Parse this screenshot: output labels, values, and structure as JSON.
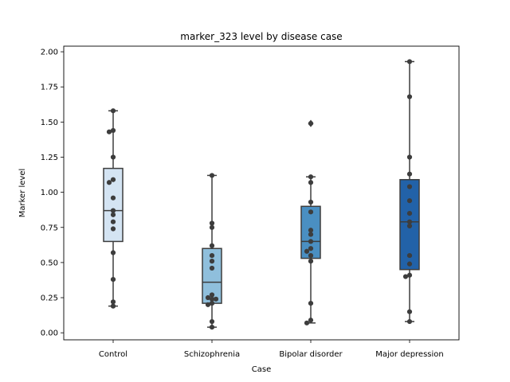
{
  "chart_data": {
    "type": "box",
    "title": "marker_323 level by disease case",
    "xlabel": "Case",
    "ylabel": "Marker level",
    "ylim": [
      -0.05,
      2.04
    ],
    "yticks": [
      "0.00",
      "0.25",
      "0.50",
      "0.75",
      "1.00",
      "1.25",
      "1.50",
      "1.75",
      "2.00"
    ],
    "grid": false,
    "categories": [
      "Control",
      "Schizophrenia",
      "Bipolar disorder",
      "Major depression"
    ],
    "colors": [
      "#d4e4f3",
      "#8fbfdc",
      "#4a8fc2",
      "#2262a8"
    ],
    "boxes": [
      {
        "category": "Control",
        "whisker_low": 0.19,
        "q1": 0.65,
        "median": 0.87,
        "q3": 1.17,
        "whisker_high": 1.58,
        "outliers": []
      },
      {
        "category": "Schizophrenia",
        "whisker_low": 0.04,
        "q1": 0.21,
        "median": 0.36,
        "q3": 0.6,
        "whisker_high": 1.12,
        "outliers": []
      },
      {
        "category": "Bipolar disorder",
        "whisker_low": 0.07,
        "q1": 0.53,
        "median": 0.65,
        "q3": 0.9,
        "whisker_high": 1.11,
        "outliers": [
          1.49
        ]
      },
      {
        "category": "Major depression",
        "whisker_low": 0.08,
        "q1": 0.45,
        "median": 0.79,
        "q3": 1.09,
        "whisker_high": 1.93,
        "outliers": []
      }
    ],
    "points": [
      {
        "category": "Control",
        "values": [
          1.58,
          1.44,
          1.43,
          1.25,
          1.09,
          1.07,
          0.96,
          0.87,
          0.84,
          0.79,
          0.74,
          0.57,
          0.38,
          0.22,
          0.19
        ]
      },
      {
        "category": "Schizophrenia",
        "values": [
          1.12,
          0.78,
          0.75,
          0.62,
          0.55,
          0.51,
          0.46,
          0.27,
          0.25,
          0.24,
          0.24,
          0.21,
          0.2,
          0.08,
          0.04
        ]
      },
      {
        "category": "Bipolar disorder",
        "values": [
          1.49,
          1.11,
          1.07,
          0.93,
          0.86,
          0.73,
          0.7,
          0.65,
          0.6,
          0.58,
          0.55,
          0.51,
          0.21,
          0.09,
          0.07
        ]
      },
      {
        "category": "Major depression",
        "values": [
          1.93,
          1.68,
          1.25,
          1.13,
          1.04,
          0.94,
          0.85,
          0.79,
          0.76,
          0.55,
          0.49,
          0.41,
          0.4,
          0.15,
          0.08
        ]
      }
    ]
  }
}
